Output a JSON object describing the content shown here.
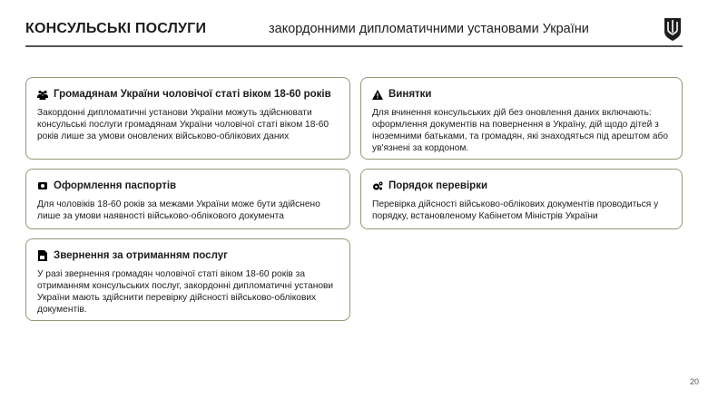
{
  "header": {
    "title": "КОНСУЛЬСЬКІ ПОСЛУГИ",
    "subtitle": "закордонними дипломатичними установами України",
    "emblem": "trident-shield-logo"
  },
  "cards": [
    {
      "icon": "people-icon",
      "title": "Громадянам України чоловічої статі віком 18-60 років",
      "text": "Закордонні дипломатичні установи України можуть здійснювати консульські послуги громадянам України чоловічої статі віком 18-60 років лише за умови оновлених військово-облікових даних"
    },
    {
      "icon": "warning-icon",
      "title": "Винятки",
      "text": "Для вчинення консульських дій без оновлення даних включають: оформлення документів на повернення в Україну, дій щодо дітей з іноземними батьками, та громадян, які знаходяться під арештом або ув'язнені за кордоном."
    },
    {
      "icon": "passport-icon",
      "title": "Оформлення паспортів",
      "text": "Для чоловіків 18-60 років за межами України  може бути здійснено лише за умови наявності військово-облікового документа"
    },
    {
      "icon": "gears-icon",
      "title": "Порядок перевірки",
      "text": "Перевірка дійсності військово-облікових документів проводиться у порядку, встановленому Кабінетом Міністрів України"
    },
    {
      "icon": "document-icon",
      "title": "Звернення за отриманням послуг",
      "text": "У разі звернення громадян чоловічої статі віком 18-60 років за отриманням консульських послуг, закордонні дипломатичні установи України мають здійснити перевірку дійсності військово-облікових документів."
    }
  ],
  "page_number": "20",
  "colors": {
    "border": "#9b9677",
    "text": "#1d1d1b"
  }
}
